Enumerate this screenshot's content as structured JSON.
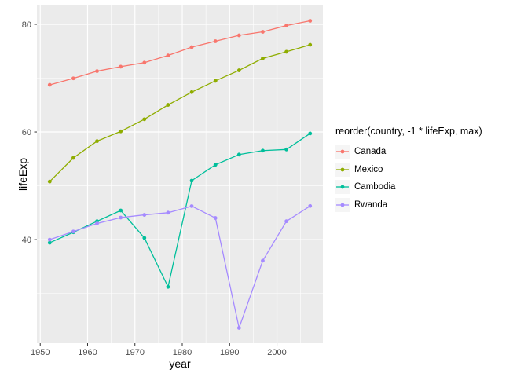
{
  "chart_data": {
    "type": "line",
    "title": "",
    "xlabel": "year",
    "ylabel": "lifeExp",
    "legend_title": "reorder(country, -1 * lifeExp, max)",
    "legend_position": "right",
    "grid": true,
    "x": [
      1952,
      1957,
      1962,
      1967,
      1972,
      1977,
      1982,
      1987,
      1992,
      1997,
      2002,
      2007
    ],
    "series": [
      {
        "name": "Canada",
        "color": "#F8766D",
        "values": [
          68.75,
          69.96,
          71.3,
          72.13,
          72.88,
          74.21,
          75.76,
          76.86,
          77.95,
          78.61,
          79.77,
          80.653
        ]
      },
      {
        "name": "Mexico",
        "color": "#8FAD00",
        "values": [
          50.789,
          55.19,
          58.299,
          60.11,
          62.361,
          65.032,
          67.405,
          69.498,
          71.455,
          73.67,
          74.902,
          76.195
        ]
      },
      {
        "name": "Cambodia",
        "color": "#00BF9B",
        "values": [
          39.417,
          41.366,
          43.415,
          45.415,
          40.317,
          31.22,
          50.957,
          53.914,
          55.803,
          56.534,
          56.752,
          59.723
        ]
      },
      {
        "name": "Rwanda",
        "color": "#A58AFF",
        "values": [
          40.0,
          41.5,
          43.0,
          44.1,
          44.6,
          45.0,
          46.218,
          44.02,
          23.599,
          36.087,
          43.413,
          46.242
        ]
      }
    ],
    "xlim": [
      1949.3,
      2009.7
    ],
    "ylim": [
      20.75,
      83.5
    ],
    "x_ticks": [
      1950,
      1960,
      1970,
      1980,
      1990,
      2000
    ],
    "y_ticks": [
      40,
      60,
      80
    ],
    "x_minor_ticks": [
      1955,
      1965,
      1975,
      1985,
      1995,
      2005
    ],
    "y_minor_ticks": [
      30,
      50,
      70
    ]
  },
  "style": {
    "panel_background": "#EBEBEB",
    "grid_color": "#FFFFFF",
    "tick_mark_color": "#333333",
    "tick_label_color": "#4D4D4D",
    "legend_key_background": "#F5F5F5"
  }
}
